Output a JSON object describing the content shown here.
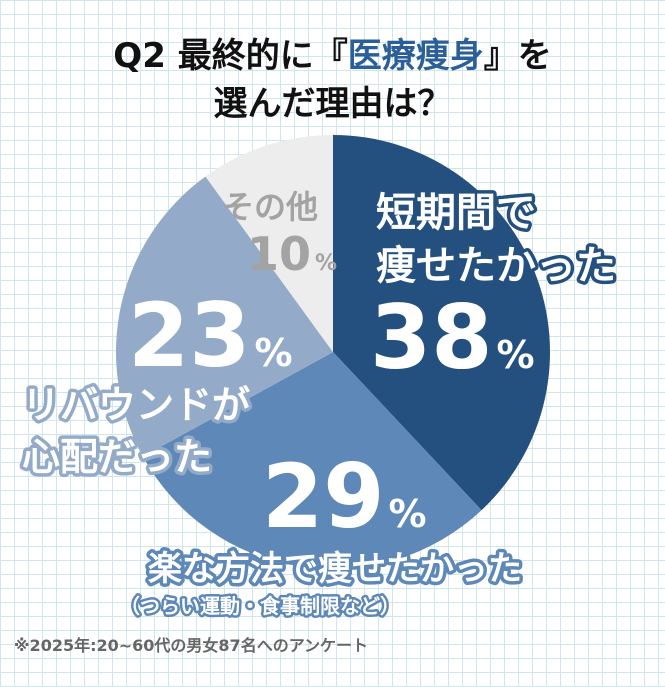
{
  "title": {
    "line1_prefix": "Q2 最終的に『",
    "line1_highlight": "医療痩身",
    "line1_suffix": "』を",
    "line2": "選んだ理由は？"
  },
  "chart_data": {
    "type": "pie",
    "start_angle": "12 o'clock",
    "direction": "clockwise",
    "slices": [
      {
        "label_lines": [
          "短期間で",
          "痩せたかった"
        ],
        "value": 38,
        "color": "#24507f"
      },
      {
        "label_lines": [
          "楽な方法で痩せたかった"
        ],
        "sublabel": "（つらい運動・食事制限など）",
        "value": 29,
        "color": "#5d88b8"
      },
      {
        "label_lines": [
          "リバウンドが",
          "心配だった"
        ],
        "value": 23,
        "color": "#93abc8"
      },
      {
        "label_lines": [
          "その他"
        ],
        "value": 10,
        "color": "#ededed"
      }
    ],
    "unit": "%"
  },
  "footnote": "※2025年:20~60代の男女87名へのアンケート"
}
